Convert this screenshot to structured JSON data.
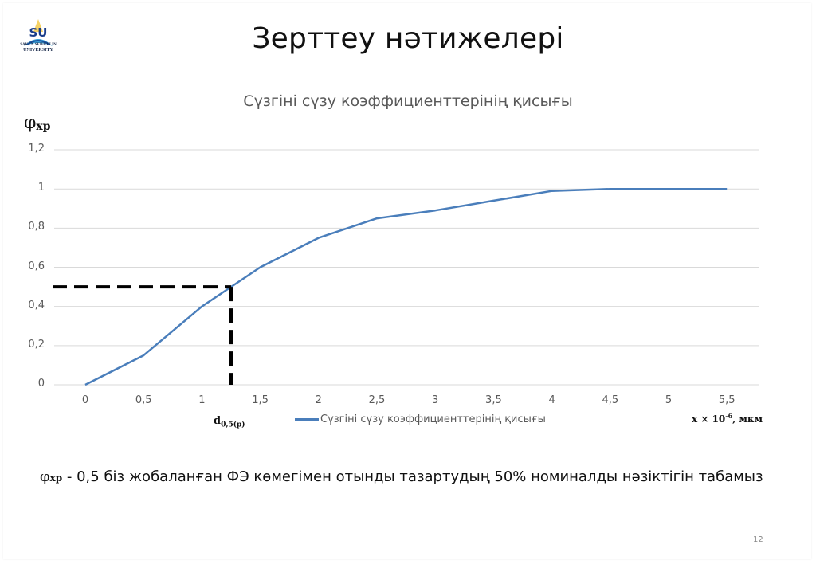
{
  "slide": {
    "title": "Зерттеу нәтижелері",
    "logo": {
      "icon": "university-logo-icon",
      "line1": "SAKEN SEIFULLIN",
      "line2": "UNIVERSITY",
      "mark": "SU"
    },
    "page_number": "12",
    "note": {
      "symbol": "φ",
      "symbol_sub": "xp",
      "text": " - 0,5 біз жобаланған ФЭ көмегімен отынды тазартудың 50% номиналды нәзіктігін табамыз"
    }
  },
  "chart_data": {
    "type": "line",
    "title": "Сүзгіні сүзу коэффициенттерінің қисығы",
    "ylabel": "φ",
    "ylabel_sub": "xp",
    "xlabel": "x × 10",
    "xlabel_sup": "-6",
    "xlabel_unit": ", мкм",
    "x_ticks": [
      "0",
      "0,5",
      "1",
      "1,5",
      "2",
      "2,5",
      "3",
      "3,5",
      "4",
      "4,5",
      "5",
      "5,5"
    ],
    "y_ticks": [
      "0",
      "0,2",
      "0,4",
      "0,6",
      "0,8",
      "1",
      "1,2"
    ],
    "ylim": [
      0,
      1.2
    ],
    "xlim": [
      0,
      5.5
    ],
    "grid": "horizontal",
    "legend": {
      "position": "bottom",
      "entries": [
        "Сүзгіні сүзу коэффициенттерінің қисығы"
      ]
    },
    "series": [
      {
        "name": "Сүзгіні сүзу коэффициенттерінің қисығы",
        "color": "#4a7ebb",
        "x": [
          0,
          0.5,
          1,
          1.5,
          2,
          2.5,
          3,
          3.5,
          4,
          4.5,
          5,
          5.5
        ],
        "values": [
          0,
          0.15,
          0.4,
          0.6,
          0.75,
          0.85,
          0.89,
          0.94,
          0.99,
          1.0,
          1.0,
          1.0
        ]
      }
    ],
    "annotations": [
      {
        "type": "dashed-guide",
        "y": 0.5,
        "x": 1.25,
        "color": "#000000",
        "label": "d",
        "label_sub": "0,5(p)"
      }
    ]
  }
}
